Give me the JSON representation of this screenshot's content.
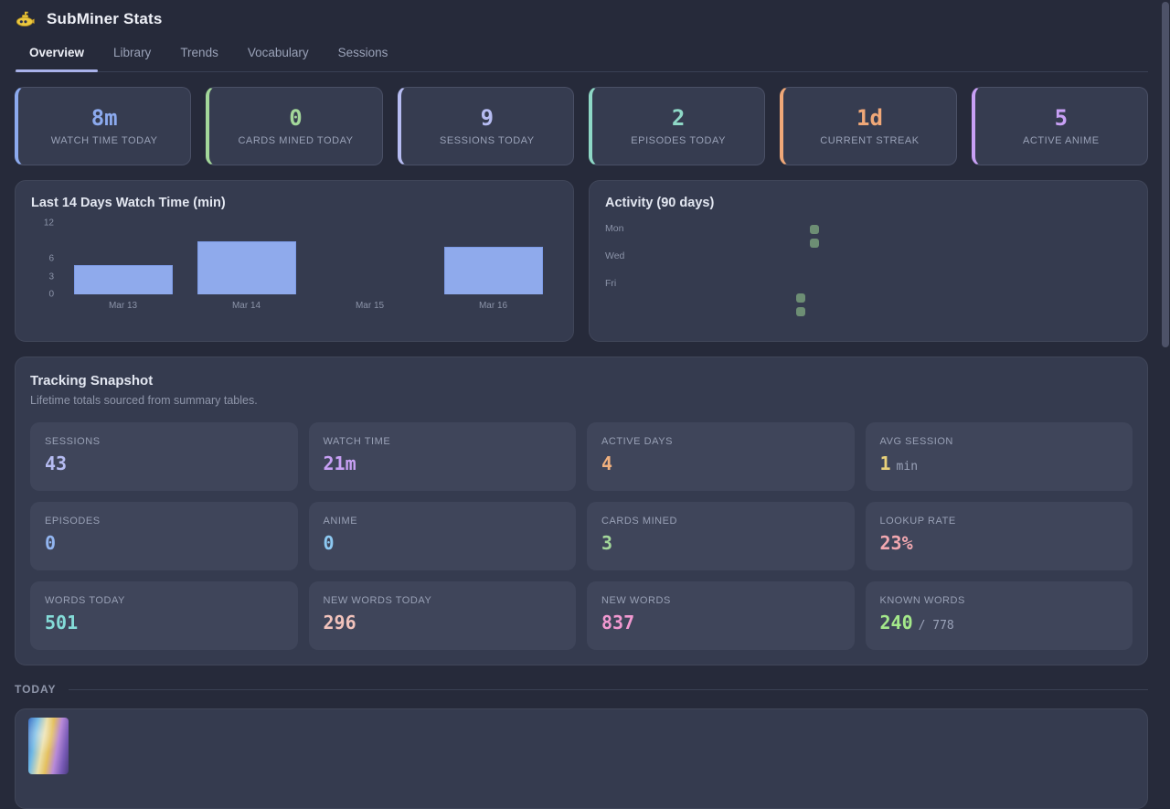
{
  "app": {
    "title": "SubMiner Stats",
    "logo": "yellow-submarine-icon"
  },
  "tabs": [
    {
      "label": "Overview",
      "active": true
    },
    {
      "label": "Library",
      "active": false
    },
    {
      "label": "Trends",
      "active": false
    },
    {
      "label": "Vocabulary",
      "active": false
    },
    {
      "label": "Sessions",
      "active": false
    }
  ],
  "stat_cards": [
    {
      "label": "WATCH TIME TODAY",
      "value": "8m",
      "color": "#8caaee"
    },
    {
      "label": "CARDS MINED TODAY",
      "value": "0",
      "color": "#a3d79a"
    },
    {
      "label": "SESSIONS TODAY",
      "value": "9",
      "color": "#b6bcf2"
    },
    {
      "label": "EPISODES TODAY",
      "value": "2",
      "color": "#8ed8c6"
    },
    {
      "label": "CURRENT STREAK",
      "value": "1d",
      "color": "#f0a878"
    },
    {
      "label": "ACTIVE ANIME",
      "value": "5",
      "color": "#c8a0f5"
    }
  ],
  "chart_data": [
    {
      "type": "bar",
      "title": "Last 14 Days Watch Time (min)",
      "categories": [
        "Mar 13",
        "Mar 14",
        "Mar 15",
        "Mar 16"
      ],
      "values": [
        5,
        9,
        0,
        8
      ],
      "xlabel": "",
      "ylabel": "",
      "ylim": [
        0,
        12
      ],
      "yticks": [
        12,
        6,
        3,
        0
      ],
      "bar_color": "#8faaec",
      "grid": false,
      "legend": "none"
    },
    {
      "type": "heatmap",
      "title": "Activity (90 days)",
      "day_labels": [
        "Mon",
        "Wed",
        "Fri"
      ],
      "rows": [
        "Mon",
        "Tue",
        "Wed",
        "Thu",
        "Fri",
        "Sat",
        "Sun"
      ],
      "weeks": 14,
      "active_color": "#6d8e74",
      "empty_color": "transparent",
      "active_cells": [
        {
          "week": 12,
          "day": "Sat"
        },
        {
          "week": 12,
          "day": "Sun"
        },
        {
          "week": 13,
          "day": "Mon"
        },
        {
          "week": 13,
          "day": "Tue"
        }
      ]
    }
  ],
  "tracking": {
    "title": "Tracking Snapshot",
    "subtitle": "Lifetime totals sourced from summary tables.",
    "tiles": [
      {
        "label": "SESSIONS",
        "value": "43",
        "suffix": "",
        "color": "#b6bcf2"
      },
      {
        "label": "WATCH TIME",
        "value": "21m",
        "suffix": "",
        "color": "#c8a0f5"
      },
      {
        "label": "ACTIVE DAYS",
        "value": "4",
        "suffix": "",
        "color": "#f0b07e"
      },
      {
        "label": "AVG SESSION",
        "value": "1",
        "suffix": "min",
        "color": "#e9d17a"
      },
      {
        "label": "EPISODES",
        "value": "0",
        "suffix": "",
        "color": "#92b5f0"
      },
      {
        "label": "ANIME",
        "value": "0",
        "suffix": "",
        "color": "#8dc9f2"
      },
      {
        "label": "CARDS MINED",
        "value": "3",
        "suffix": "",
        "color": "#a3d79a"
      },
      {
        "label": "LOOKUP RATE",
        "value": "23%",
        "suffix": "",
        "color": "#f2a8b0"
      },
      {
        "label": "WORDS TODAY",
        "value": "501",
        "suffix": "",
        "color": "#84dcd8"
      },
      {
        "label": "NEW WORDS TODAY",
        "value": "296",
        "suffix": "",
        "color": "#f2c3bc"
      },
      {
        "label": "NEW WORDS",
        "value": "837",
        "suffix": "",
        "color": "#f299d1"
      },
      {
        "label": "KNOWN WORDS",
        "value": "240",
        "suffix": "/ 778",
        "color": "#a4e88a"
      }
    ]
  },
  "today_section": {
    "label": "TODAY"
  }
}
